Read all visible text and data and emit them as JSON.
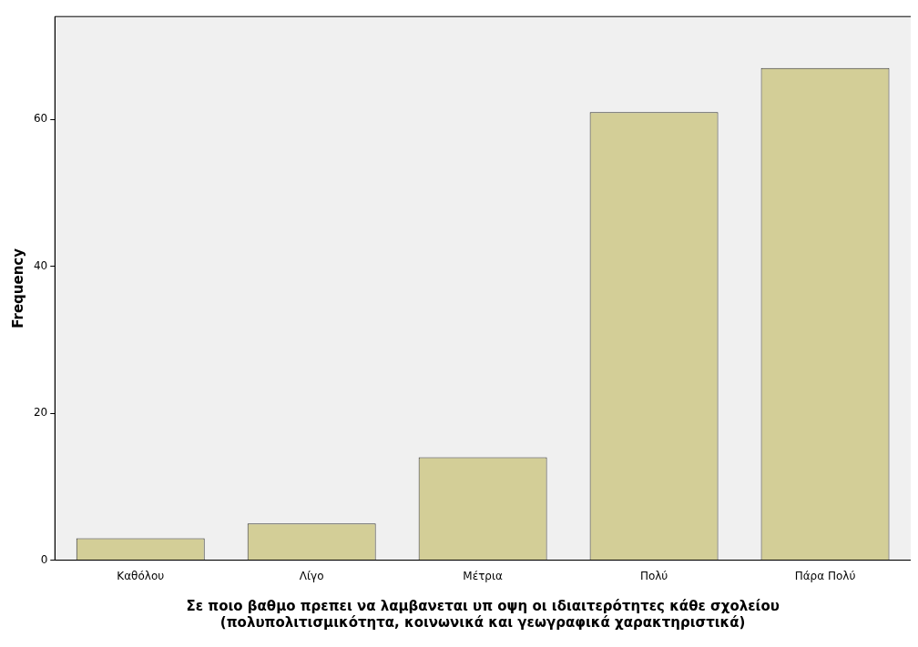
{
  "chart_data": {
    "type": "bar",
    "xlabel": "Σε ποιο βαθμο πρεπει να λαμβανεται υπ οψη οι ιδιαιτερότητες κάθε σχολείου\n(πολυπολιτισμικότητα, κοινωνικά και γεωγραφικά χαρακτηριστικά)",
    "ylabel": "Frequency",
    "categories": [
      "Καθόλου",
      "Λίγο",
      "Μέτρια",
      "Πολύ",
      "Πάρα Πολύ"
    ],
    "values": [
      3,
      5,
      14,
      61,
      67
    ],
    "color": "#d3ce97",
    "ylim": [
      0,
      74
    ],
    "yticks": [
      0,
      20,
      40,
      60
    ],
    "grid": false,
    "legend": false
  }
}
